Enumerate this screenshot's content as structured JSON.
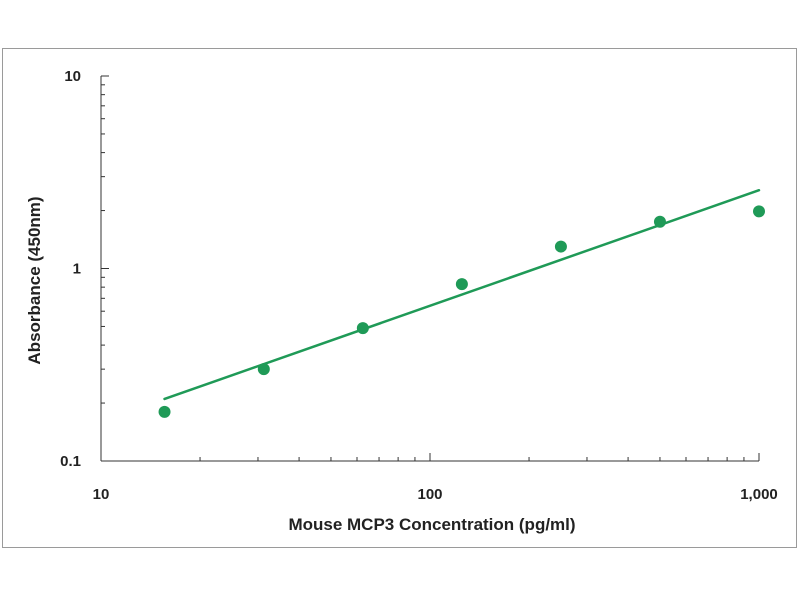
{
  "chart_data": {
    "type": "scatter",
    "title": "",
    "xlabel": "Mouse MCP3  Concentration (pg/ml)",
    "ylabel": "Absorbance (450nm)",
    "x_scale": "log",
    "y_scale": "log",
    "xlim": [
      10,
      1000
    ],
    "ylim": [
      0.1,
      10
    ],
    "x_ticks": [
      {
        "value": 10,
        "label": "10"
      },
      {
        "value": 100,
        "label": "100"
      },
      {
        "value": 1000,
        "label": "1,000"
      }
    ],
    "y_ticks": [
      {
        "value": 0.1,
        "label": "0.1"
      },
      {
        "value": 1,
        "label": "1"
      },
      {
        "value": 10,
        "label": "10"
      }
    ],
    "grid": false,
    "legend": "none",
    "series": [
      {
        "points": [
          {
            "x": 15.6,
            "y": 0.18
          },
          {
            "x": 31.25,
            "y": 0.3
          },
          {
            "x": 62.5,
            "y": 0.49
          },
          {
            "x": 125,
            "y": 0.83
          },
          {
            "x": 250,
            "y": 1.3
          },
          {
            "x": 500,
            "y": 1.75
          },
          {
            "x": 1000,
            "y": 1.98
          }
        ],
        "fit_line": {
          "from": {
            "x": 15.6,
            "y": 0.21
          },
          "to": {
            "x": 1000,
            "y": 2.55
          }
        },
        "color": "#1f9a57"
      }
    ]
  }
}
